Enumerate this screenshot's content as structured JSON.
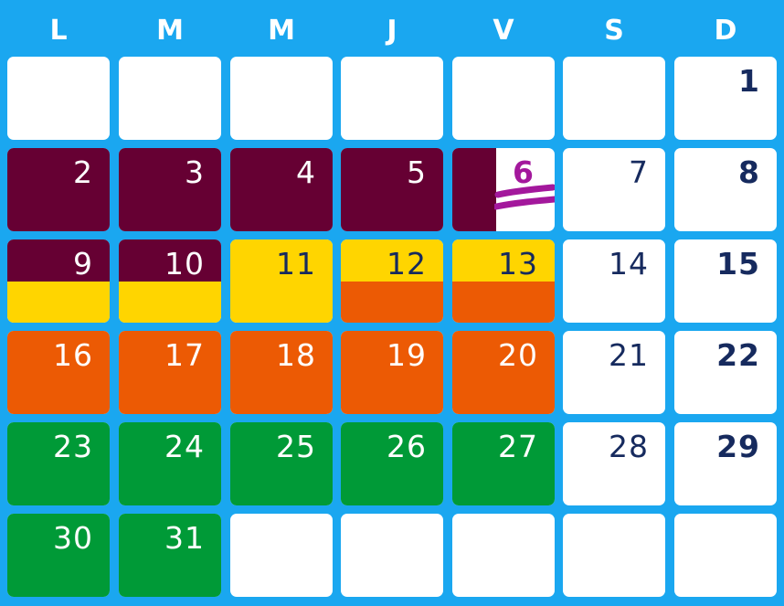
{
  "days_of_week": [
    "L",
    "M",
    "M",
    "J",
    "V",
    "S",
    "D"
  ],
  "colors": {
    "background": "#1aa7f0",
    "cell_empty": "#ffffff",
    "maroon": "#660033",
    "yellow": "#ffd500",
    "orange": "#ec5a04",
    "green": "#009a37",
    "text_light": "#ffffff",
    "text_dark": "#162a5e",
    "mark": "#a3189c"
  },
  "weeks": [
    [
      {
        "day": ""
      },
      {
        "day": ""
      },
      {
        "day": ""
      },
      {
        "day": ""
      },
      {
        "day": ""
      },
      {
        "day": ""
      },
      {
        "day": "1",
        "text": "dark",
        "bold": true
      }
    ],
    [
      {
        "day": "2",
        "fill": "maroon"
      },
      {
        "day": "3",
        "fill": "maroon"
      },
      {
        "day": "4",
        "fill": "maroon"
      },
      {
        "day": "5",
        "fill": "maroon"
      },
      {
        "day": "6",
        "fill": "maroon",
        "fill_mode": "left",
        "text": "mark",
        "crossed_out": true
      },
      {
        "day": "7",
        "text": "dark"
      },
      {
        "day": "8",
        "text": "dark",
        "bold": true
      }
    ],
    [
      {
        "day": "9",
        "fill": "maroon",
        "fill2": "yellow",
        "fill_mode": "split"
      },
      {
        "day": "10",
        "fill": "maroon",
        "fill2": "yellow",
        "fill_mode": "split"
      },
      {
        "day": "11",
        "fill": "yellow",
        "text": "dark"
      },
      {
        "day": "12",
        "fill": "yellow",
        "fill2": "orange",
        "fill_mode": "split",
        "text": "dark"
      },
      {
        "day": "13",
        "fill": "yellow",
        "fill2": "orange",
        "fill_mode": "split",
        "text": "dark"
      },
      {
        "day": "14",
        "text": "dark"
      },
      {
        "day": "15",
        "text": "dark",
        "bold": true
      }
    ],
    [
      {
        "day": "16",
        "fill": "orange"
      },
      {
        "day": "17",
        "fill": "orange"
      },
      {
        "day": "18",
        "fill": "orange"
      },
      {
        "day": "19",
        "fill": "orange"
      },
      {
        "day": "20",
        "fill": "orange"
      },
      {
        "day": "21",
        "text": "dark"
      },
      {
        "day": "22",
        "text": "dark",
        "bold": true
      }
    ],
    [
      {
        "day": "23",
        "fill": "green"
      },
      {
        "day": "24",
        "fill": "green"
      },
      {
        "day": "25",
        "fill": "green"
      },
      {
        "day": "26",
        "fill": "green"
      },
      {
        "day": "27",
        "fill": "green"
      },
      {
        "day": "28",
        "text": "dark"
      },
      {
        "day": "29",
        "text": "dark",
        "bold": true
      }
    ],
    [
      {
        "day": "30",
        "fill": "green"
      },
      {
        "day": "31",
        "fill": "green"
      },
      {
        "day": ""
      },
      {
        "day": ""
      },
      {
        "day": ""
      },
      {
        "day": ""
      },
      {
        "day": ""
      }
    ]
  ]
}
